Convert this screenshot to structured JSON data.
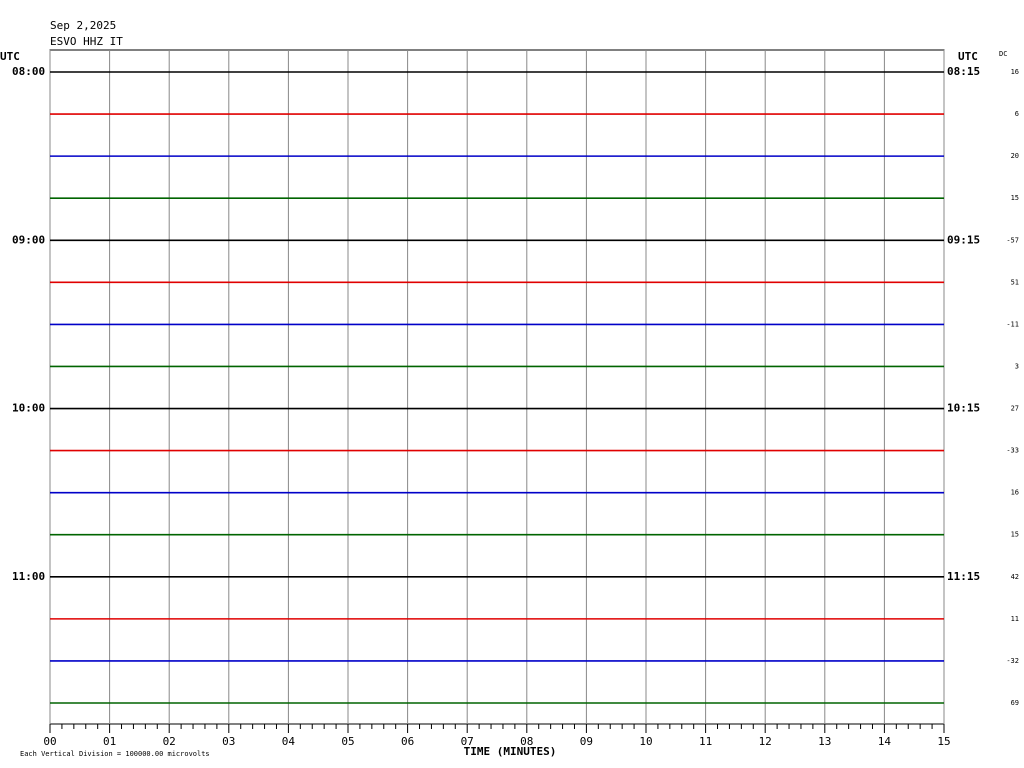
{
  "chart_data": {
    "type": "helicorder",
    "title": "Sep 2,2025",
    "subtitle": "ESVO HHZ IT",
    "left_axis_label": "UTC",
    "right_axis_label": "UTC",
    "dc_label": "DC",
    "xlabel": "TIME (MINUTES)",
    "footnote": "Each Vertical Division = 100000.00 microvolts",
    "xlim": [
      0,
      15
    ],
    "xticks": [
      {
        "value": 0,
        "label": "00"
      },
      {
        "value": 1,
        "label": "01"
      },
      {
        "value": 2,
        "label": "02"
      },
      {
        "value": 3,
        "label": "03"
      },
      {
        "value": 4,
        "label": "04"
      },
      {
        "value": 5,
        "label": "05"
      },
      {
        "value": 6,
        "label": "06"
      },
      {
        "value": 7,
        "label": "07"
      },
      {
        "value": 8,
        "label": "08"
      },
      {
        "value": 9,
        "label": "09"
      },
      10,
      11,
      12,
      13,
      14,
      15
    ],
    "minor_xticks": [
      0.2,
      0.4,
      0.6,
      0.8,
      1.2,
      1.4,
      1.6,
      1.8,
      2.2,
      2.4,
      2.6,
      2.8,
      3.2,
      3.4,
      3.6,
      3.8,
      4.2,
      4.4,
      4.6,
      4.8,
      5.2,
      5.4,
      5.6,
      5.8,
      6.2,
      6.4,
      6.6,
      6.8,
      7.2,
      7.4,
      7.6,
      7.8,
      8.2,
      8.4,
      8.6,
      8.8,
      9.2,
      9.4,
      9.6,
      9.8,
      10.2,
      10.4,
      10.6,
      10.8,
      11.2,
      11.4,
      11.6,
      11.8,
      12.2,
      12.4,
      12.6,
      12.8,
      13.2,
      13.4,
      13.6,
      13.8,
      14.2,
      14.4,
      14.6,
      14.8
    ],
    "grid": true,
    "rows": [
      {
        "left_label": "08:00",
        "right_label": "08:15",
        "dc": 16,
        "color": "#000000"
      },
      {
        "left_label": null,
        "right_label": null,
        "dc": 6,
        "color": "#e00000"
      },
      {
        "left_label": null,
        "right_label": null,
        "dc": 20,
        "color": "#0000c8"
      },
      {
        "left_label": null,
        "right_label": null,
        "dc": 15,
        "color": "#006400"
      },
      {
        "left_label": "09:00",
        "right_label": "09:15",
        "dc": -57,
        "color": "#000000"
      },
      {
        "left_label": null,
        "right_label": null,
        "dc": 51,
        "color": "#e00000"
      },
      {
        "left_label": null,
        "right_label": null,
        "dc": -11,
        "color": "#0000c8"
      },
      {
        "left_label": null,
        "right_label": null,
        "dc": 3,
        "color": "#006400"
      },
      {
        "left_label": "10:00",
        "right_label": "10:15",
        "dc": 27,
        "color": "#000000"
      },
      {
        "left_label": null,
        "right_label": null,
        "dc": -33,
        "color": "#e00000"
      },
      {
        "left_label": null,
        "right_label": null,
        "dc": 16,
        "color": "#0000c8"
      },
      {
        "left_label": null,
        "right_label": null,
        "dc": 15,
        "color": "#006400"
      },
      {
        "left_label": "11:00",
        "right_label": "11:15",
        "dc": 42,
        "color": "#000000"
      },
      {
        "left_label": null,
        "right_label": null,
        "dc": 11,
        "color": "#e00000"
      },
      {
        "left_label": null,
        "right_label": null,
        "dc": -32,
        "color": "#0000c8"
      },
      {
        "left_label": null,
        "right_label": null,
        "dc": 69,
        "color": "#006400"
      }
    ]
  }
}
